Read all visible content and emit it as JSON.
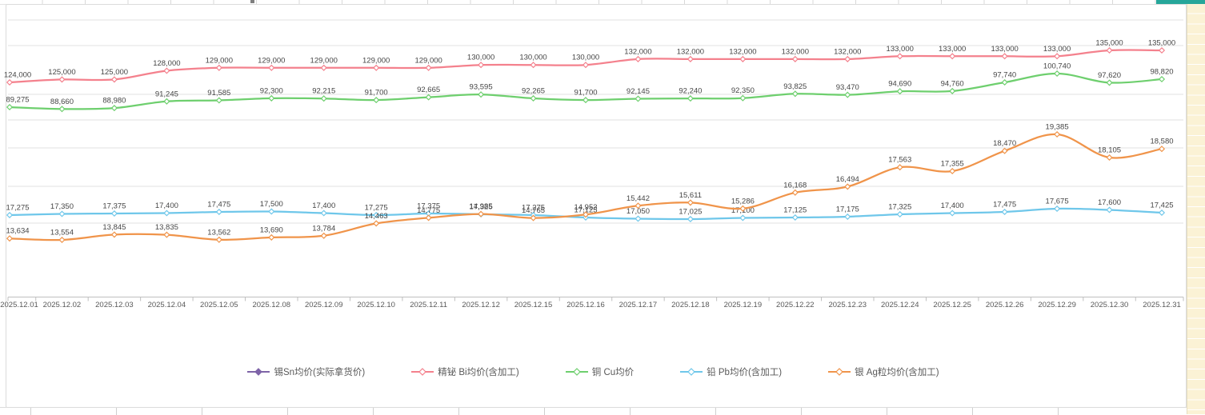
{
  "chart_data": {
    "type": "line",
    "title": "",
    "xlabel": "",
    "ylabel": "",
    "grid": true,
    "y_axis_visible": false,
    "data_labels": true,
    "marker": "hollow-diamond",
    "smoothed_lines": true,
    "legend_position": "bottom",
    "categories": [
      "2025.12.01",
      "2025.12.02",
      "2025.12.03",
      "2025.12.04",
      "2025.12.05",
      "2025.12.08",
      "2025.12.09",
      "2025.12.10",
      "2025.12.11",
      "2025.12.12",
      "2025.12.15",
      "2025.12.16",
      "2025.12.17",
      "2025.12.18",
      "2025.12.19",
      "2025.12.22",
      "2025.12.23",
      "2025.12.24",
      "2025.12.25",
      "2025.12.26",
      "2025.12.29",
      "2025.12.30",
      "2025.12.31"
    ],
    "series": [
      {
        "id": "sn",
        "name": "锡Sn均价(实际拿货价)",
        "color": "#7e64a8",
        "marker_filled": true,
        "values": []
      },
      {
        "id": "bi",
        "name": "精铋 Bi均价(含加工)",
        "color": "#f4818d",
        "marker_filled": false,
        "values": [
          124000,
          125000,
          125000,
          128000,
          129000,
          129000,
          129000,
          129000,
          129000,
          130000,
          130000,
          130000,
          132000,
          132000,
          132000,
          132000,
          132000,
          133000,
          133000,
          133000,
          133000,
          135000,
          135000
        ]
      },
      {
        "id": "cu",
        "name": "铜 Cu均价",
        "color": "#6ecf6e",
        "marker_filled": false,
        "values": [
          89275,
          88660,
          88980,
          91245,
          91585,
          92300,
          92215,
          91700,
          92665,
          93595,
          92265,
          91700,
          92145,
          92240,
          92350,
          93825,
          93470,
          94690,
          94760,
          97740,
          100740,
          97620,
          98820
        ]
      },
      {
        "id": "pb",
        "name": "铅 Pb均价(含加工)",
        "color": "#6fc7ea",
        "marker_filled": false,
        "values": [
          17275,
          17350,
          17375,
          17400,
          17475,
          17500,
          17400,
          17275,
          17375,
          17325,
          17275,
          17125,
          17050,
          17025,
          17100,
          17125,
          17175,
          17325,
          17400,
          17475,
          17675,
          17600,
          17425
        ]
      },
      {
        "id": "ag",
        "name": "银 Ag粒均价(含加工)",
        "color": "#f0944a",
        "marker_filled": false,
        "values": [
          13634,
          13554,
          13845,
          13835,
          13562,
          13690,
          13784,
          14463,
          14775,
          14985,
          14765,
          14953,
          15442,
          15611,
          15286,
          16168,
          16494,
          17563,
          17355,
          18470,
          19385,
          18105,
          18580
        ]
      }
    ]
  },
  "label_text_color": "#454545",
  "axis_text_color": "#595959"
}
